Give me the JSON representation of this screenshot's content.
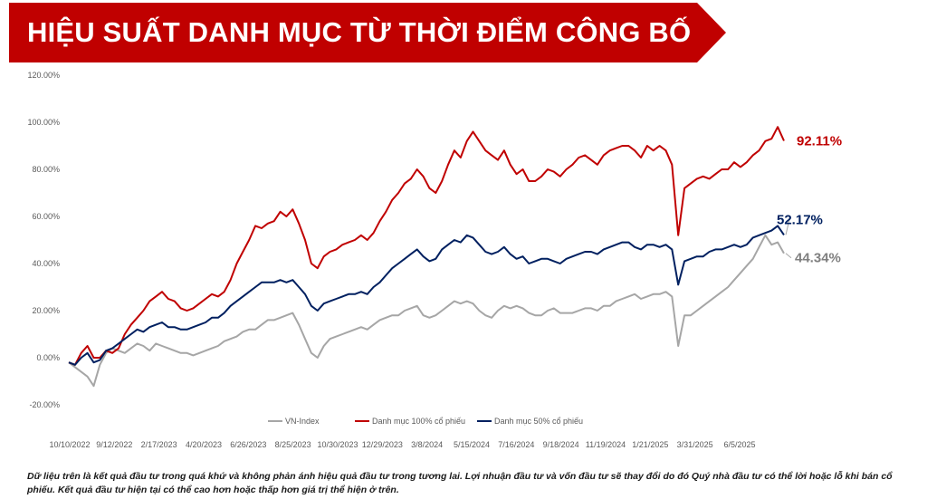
{
  "header": {
    "title": "HIỆU SUẤT DANH MỤC TỪ THỜI ĐIỂM CÔNG BỐ",
    "banner_color": "#C00000"
  },
  "chart_data": {
    "type": "line",
    "ylim": [
      -20,
      120
    ],
    "yticks": [
      -20,
      0,
      20,
      40,
      60,
      80,
      100,
      120
    ],
    "ytick_labels": [
      "-20.00%",
      "0.00%",
      "20.00%",
      "40.00%",
      "60.00%",
      "80.00%",
      "100.00%",
      "120.00%"
    ],
    "xtick_labels": [
      "10/10/2022",
      "9/12/2022",
      "2/17/2023",
      "4/20/2023",
      "6/26/2023",
      "8/25/2023",
      "10/30/2023",
      "12/29/2023",
      "3/8/2024",
      "5/15/2024",
      "7/16/2024",
      "9/18/2024",
      "11/19/2024",
      "1/21/2025",
      "3/31/2025",
      "6/5/2025"
    ],
    "grid": false,
    "legend_position": "bottom",
    "series": [
      {
        "name": "VN-Index",
        "color": "#A6A6A6",
        "end_label": "44.34%",
        "values": [
          -2,
          -4,
          -6,
          -8,
          -12,
          -3,
          2,
          4,
          3,
          2,
          4,
          6,
          5,
          3,
          6,
          5,
          4,
          3,
          2,
          2,
          1,
          2,
          3,
          4,
          5,
          7,
          8,
          9,
          11,
          12,
          12,
          14,
          16,
          16,
          17,
          18,
          19,
          14,
          8,
          2,
          0,
          5,
          8,
          9,
          10,
          11,
          12,
          13,
          12,
          14,
          16,
          17,
          18,
          18,
          20,
          21,
          22,
          18,
          17,
          18,
          20,
          22,
          24,
          23,
          24,
          23,
          20,
          18,
          17,
          20,
          22,
          21,
          22,
          21,
          19,
          18,
          18,
          20,
          21,
          19,
          19,
          19,
          20,
          21,
          21,
          20,
          22,
          22,
          24,
          25,
          26,
          27,
          25,
          26,
          27,
          27,
          28,
          26,
          5,
          18,
          18,
          20,
          22,
          24,
          26,
          28,
          30,
          33,
          36,
          39,
          42,
          47,
          52,
          48,
          49,
          44.34
        ]
      },
      {
        "name": "Danh mục 100% cổ phiếu",
        "color": "#C00000",
        "end_label": "92.11%",
        "values": [
          -2,
          -3,
          2,
          5,
          0,
          0,
          3,
          2,
          4,
          10,
          14,
          17,
          20,
          24,
          26,
          28,
          25,
          24,
          21,
          20,
          21,
          23,
          25,
          27,
          26,
          28,
          33,
          40,
          45,
          50,
          56,
          55,
          57,
          58,
          62,
          60,
          63,
          57,
          50,
          40,
          38,
          43,
          45,
          46,
          48,
          49,
          50,
          52,
          50,
          53,
          58,
          62,
          67,
          70,
          74,
          76,
          80,
          77,
          72,
          70,
          75,
          82,
          88,
          85,
          92,
          96,
          92,
          88,
          86,
          84,
          88,
          82,
          78,
          80,
          75,
          75,
          77,
          80,
          79,
          77,
          80,
          82,
          85,
          86,
          84,
          82,
          86,
          88,
          89,
          90,
          90,
          88,
          85,
          90,
          88,
          90,
          88,
          82,
          52,
          72,
          74,
          76,
          77,
          76,
          78,
          80,
          80,
          83,
          81,
          83,
          86,
          88,
          92,
          93,
          98,
          92.11
        ]
      },
      {
        "name": "Danh mục 50% cổ phiếu",
        "color": "#002060",
        "end_label": "52.17%",
        "values": [
          -2,
          -3,
          0,
          2,
          -2,
          -1,
          3,
          4,
          6,
          8,
          10,
          12,
          11,
          13,
          14,
          15,
          13,
          13,
          12,
          12,
          13,
          14,
          15,
          17,
          17,
          19,
          22,
          24,
          26,
          28,
          30,
          32,
          32,
          32,
          33,
          32,
          33,
          30,
          27,
          22,
          20,
          23,
          24,
          25,
          26,
          27,
          27,
          28,
          27,
          30,
          32,
          35,
          38,
          40,
          42,
          44,
          46,
          43,
          41,
          42,
          46,
          48,
          50,
          49,
          52,
          51,
          48,
          45,
          44,
          45,
          47,
          44,
          42,
          43,
          40,
          41,
          42,
          42,
          41,
          40,
          42,
          43,
          44,
          45,
          45,
          44,
          46,
          47,
          48,
          49,
          49,
          47,
          46,
          48,
          48,
          47,
          48,
          46,
          31,
          41,
          42,
          43,
          43,
          45,
          46,
          46,
          47,
          48,
          47,
          48,
          51,
          52,
          53,
          54,
          56,
          52.17
        ]
      }
    ]
  },
  "disclaimer": "Dữ liệu trên là kết quả đầu tư trong quá khứ và không phản ánh hiệu quả đầu tư trong tương lai. Lợi nhuận đầu tư và vốn đầu tư sẽ thay đổi do đó Quý nhà đầu tư có thể lời hoặc lỗ khi bán cổ phiếu. Kết quả đầu tư hiện tại có thể cao hơn hoặc thấp hơn giá trị thể hiện ở trên."
}
